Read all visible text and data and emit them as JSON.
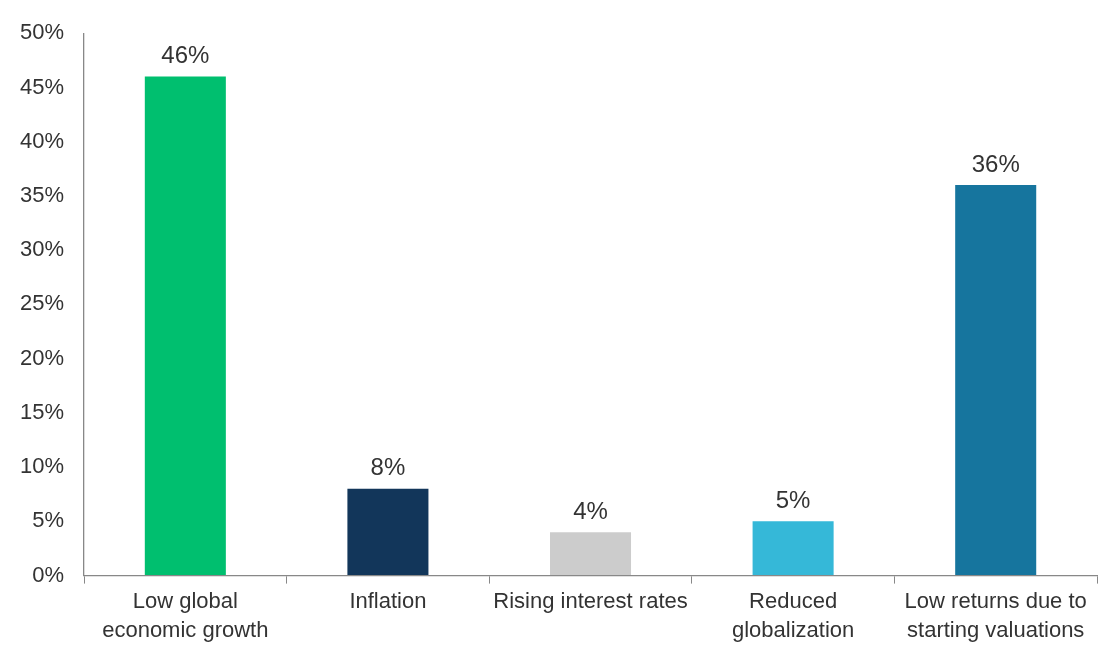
{
  "chart_data": {
    "type": "bar",
    "categories": [
      "Low global economic growth",
      "Inflation",
      "Rising interest rates",
      "Reduced globalization",
      "Low returns due to starting valuations"
    ],
    "values": [
      46,
      8,
      4,
      5,
      36
    ],
    "colors": [
      "#00bf6f",
      "#12365a",
      "#cccccc",
      "#35b8d8",
      "#16759e"
    ],
    "value_labels": [
      "46%",
      "8%",
      "4%",
      "5%",
      "36%"
    ],
    "ylim": [
      0,
      50
    ],
    "yticks": [
      {
        "value": 0,
        "label": "0%"
      },
      {
        "value": 5,
        "label": "5%"
      },
      {
        "value": 10,
        "label": "10%"
      },
      {
        "value": 15,
        "label": "15%"
      },
      {
        "value": 20,
        "label": "20%"
      },
      {
        "value": 25,
        "label": "25%"
      },
      {
        "value": 30,
        "label": "30%"
      },
      {
        "value": 35,
        "label": "35%"
      },
      {
        "value": 40,
        "label": "40%"
      },
      {
        "value": 45,
        "label": "45%"
      },
      {
        "value": 50,
        "label": "50%"
      }
    ],
    "grid": false,
    "legend": false
  }
}
